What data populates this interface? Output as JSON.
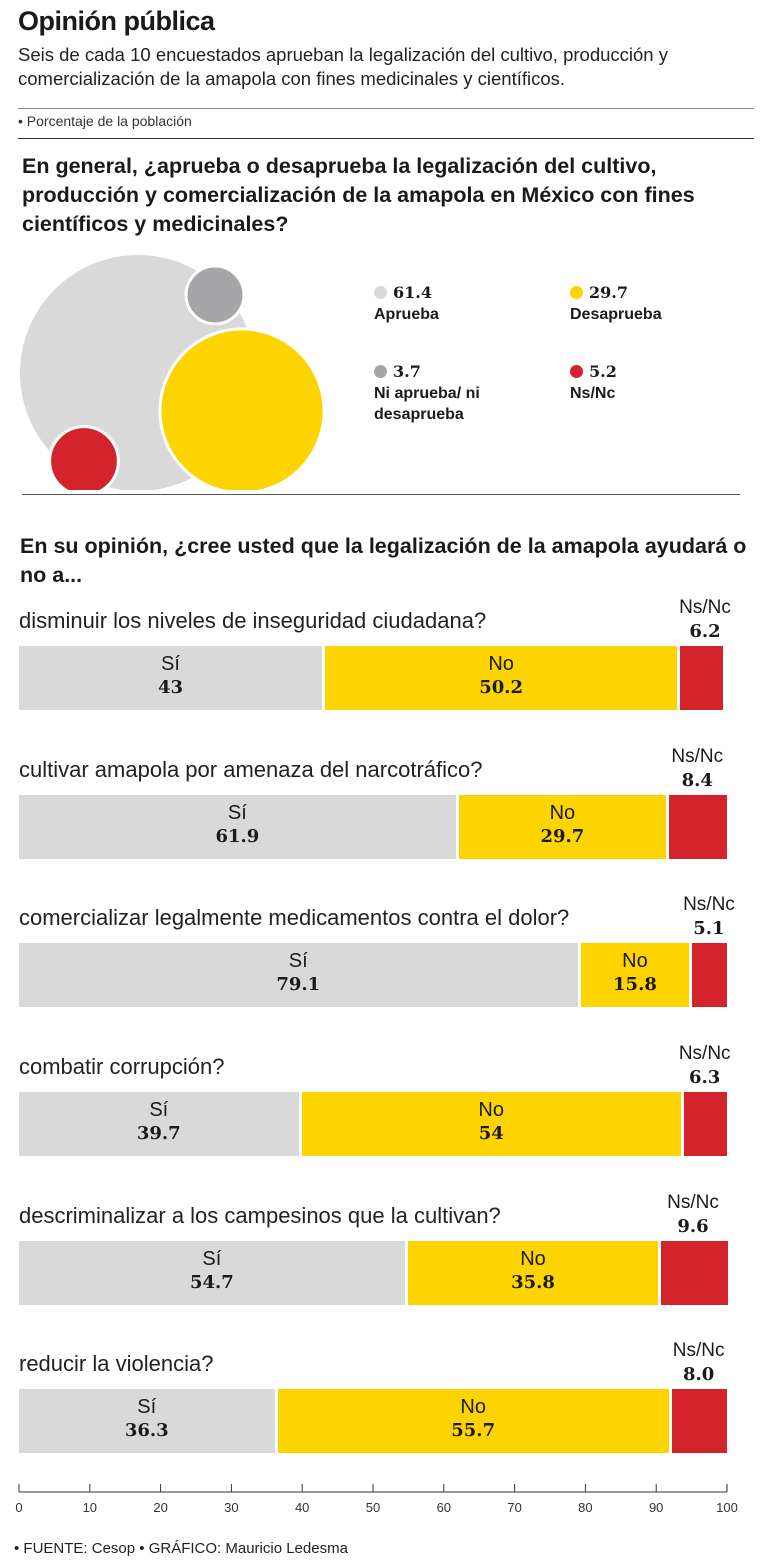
{
  "header": {
    "title": "Opinión pública",
    "subtitle": "Seis de cada 10 encuestados aprueban la legalización del cultivo, producción y comercialización de la amapola con fines medicinales y científicos.",
    "unit_note": "• Porcentaje de la población"
  },
  "section1": {
    "question": "En general, ¿aprueba o desaprueba la legalización del cultivo, producción y comercialización de la amapola en México con fines científicos y medicinales?"
  },
  "section2": {
    "question": "En su opinión, ¿cree usted que la legalización de la amapola ayudará o no a..."
  },
  "footer": {
    "source": "• FUENTE: Cesop • GRÁFICO: Mauricio Ledesma"
  },
  "colors": {
    "si": "#d9d9d9",
    "no": "#fdd300",
    "ns": "#d4242b",
    "ni": "#a6a6a8"
  },
  "chart_data": [
    {
      "type": "pie",
      "style": "bubble",
      "question": "En general, ¿aprueba o desaprueba la legalización del cultivo, producción y comercialización de la amapola en México con fines científicos y medicinales?",
      "slices": [
        {
          "label": "Aprueba",
          "value": 61.4,
          "color": "#d9d9d9"
        },
        {
          "label": "Desaprueba",
          "value": 29.7,
          "color": "#fdd300"
        },
        {
          "label": "Ni aprueba/ ni desaprueba",
          "value": 3.7,
          "color": "#a6a6a8"
        },
        {
          "label": "Ns/Nc",
          "value": 5.2,
          "color": "#d4242b"
        }
      ],
      "legend": [
        {
          "value": "61.4",
          "label": "Aprueba"
        },
        {
          "value": "29.7",
          "label": "Desaprueba"
        },
        {
          "value": "3.7",
          "label": "Ni aprueba/ ni desaprueba"
        },
        {
          "value": "5.2",
          "label": "Ns/Nc"
        }
      ]
    },
    {
      "type": "bar",
      "orientation": "horizontal",
      "stacked": true,
      "xlim": [
        0,
        100
      ],
      "xticks": [
        "0",
        "10",
        "20",
        "30",
        "40",
        "50",
        "60",
        "70",
        "80",
        "90",
        "100"
      ],
      "series_labels": {
        "si": "Sí",
        "no": "No",
        "ns": "Ns/Nc"
      },
      "items": [
        {
          "label": "disminuir los niveles de inseguridad ciudadana?",
          "si": 43,
          "si_text": "43",
          "no": 50.2,
          "no_text": "50.2",
          "ns": 6.2,
          "ns_text": "6.2"
        },
        {
          "label": "cultivar amapola por amenaza del narcotráfico?",
          "si": 61.9,
          "si_text": "61.9",
          "no": 29.7,
          "no_text": "29.7",
          "ns": 8.4,
          "ns_text": "8.4"
        },
        {
          "label": "comercializar legalmente medicamentos contra el dolor?",
          "si": 79.1,
          "si_text": "79.1",
          "no": 15.8,
          "no_text": "15.8",
          "ns": 5.1,
          "ns_text": "5.1"
        },
        {
          "label": "combatir corrupción?",
          "si": 39.7,
          "si_text": "39.7",
          "no": 54,
          "no_text": "54",
          "ns": 6.3,
          "ns_text": "6.3"
        },
        {
          "label": "descriminalizar a los campesinos que la cultivan?",
          "si": 54.7,
          "si_text": "54.7",
          "no": 35.8,
          "no_text": "35.8",
          "ns": 9.6,
          "ns_text": "9.6"
        },
        {
          "label": "reducir la violencia?",
          "si": 36.3,
          "si_text": "36.3",
          "no": 55.7,
          "no_text": "55.7",
          "ns": 8.0,
          "ns_text": "8.0"
        }
      ]
    }
  ]
}
